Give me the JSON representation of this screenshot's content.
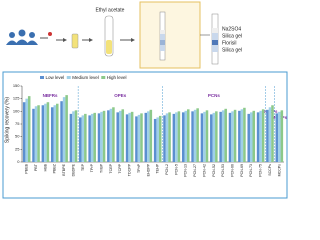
{
  "diagram": {
    "solvent": "Ethyl acetate",
    "layers": [
      "Na2SO4",
      "Silica gel",
      "Florisil",
      "Silica gel"
    ]
  },
  "chart_data": {
    "type": "bar",
    "y_label": "Spiking recovery (%)",
    "groups": [
      "NBFRs",
      "OPEs",
      "PCNs",
      "SCCPs",
      "MCCPs"
    ],
    "categories": [
      "PBEB",
      "PBT",
      "HBB",
      "PBBZ",
      "BTBPE",
      "DBDPE",
      "TEP",
      "TPrP",
      "TnBP",
      "TCEP",
      "TCPP",
      "TDCPP",
      "TPhP",
      "EHDPP",
      "TEHP",
      "PCN-2",
      "PCN-5",
      "PCN-13",
      "PCN-27",
      "PCN-42",
      "PCN-52",
      "PCN-53",
      "PCN-66",
      "PCN-69",
      "PCN-73",
      "PCN-75",
      "SCCPs",
      "MCCPs"
    ],
    "series": [
      {
        "name": "Low level",
        "color": "#5b8fd0",
        "values": [
          118,
          105,
          112,
          108,
          120,
          95,
          88,
          92,
          96,
          102,
          98,
          94,
          90,
          97,
          85,
          92,
          95,
          98,
          100,
          96,
          94,
          99,
          97,
          101,
          95,
          98,
          103,
          96
        ]
      },
      {
        "name": "Medium level",
        "color": "#9fd0e8",
        "values": [
          125,
          110,
          115,
          112,
          128,
          100,
          92,
          95,
          99,
          105,
          101,
          97,
          93,
          100,
          88,
          96,
          98,
          101,
          103,
          99,
          97,
          102,
          100,
          104,
          98,
          101,
          108,
          99
        ]
      },
      {
        "name": "High level",
        "color": "#8cc98a",
        "values": [
          130,
          112,
          118,
          115,
          132,
          102,
          95,
          97,
          101,
          108,
          104,
          99,
          96,
          103,
          91,
          98,
          100,
          104,
          106,
          102,
          100,
          105,
          103,
          107,
          101,
          104,
          112,
          102
        ]
      }
    ],
    "ylim": [
      0,
      150
    ],
    "yticks": [
      0,
      25,
      50,
      75,
      100,
      125,
      150
    ],
    "grid": false
  }
}
